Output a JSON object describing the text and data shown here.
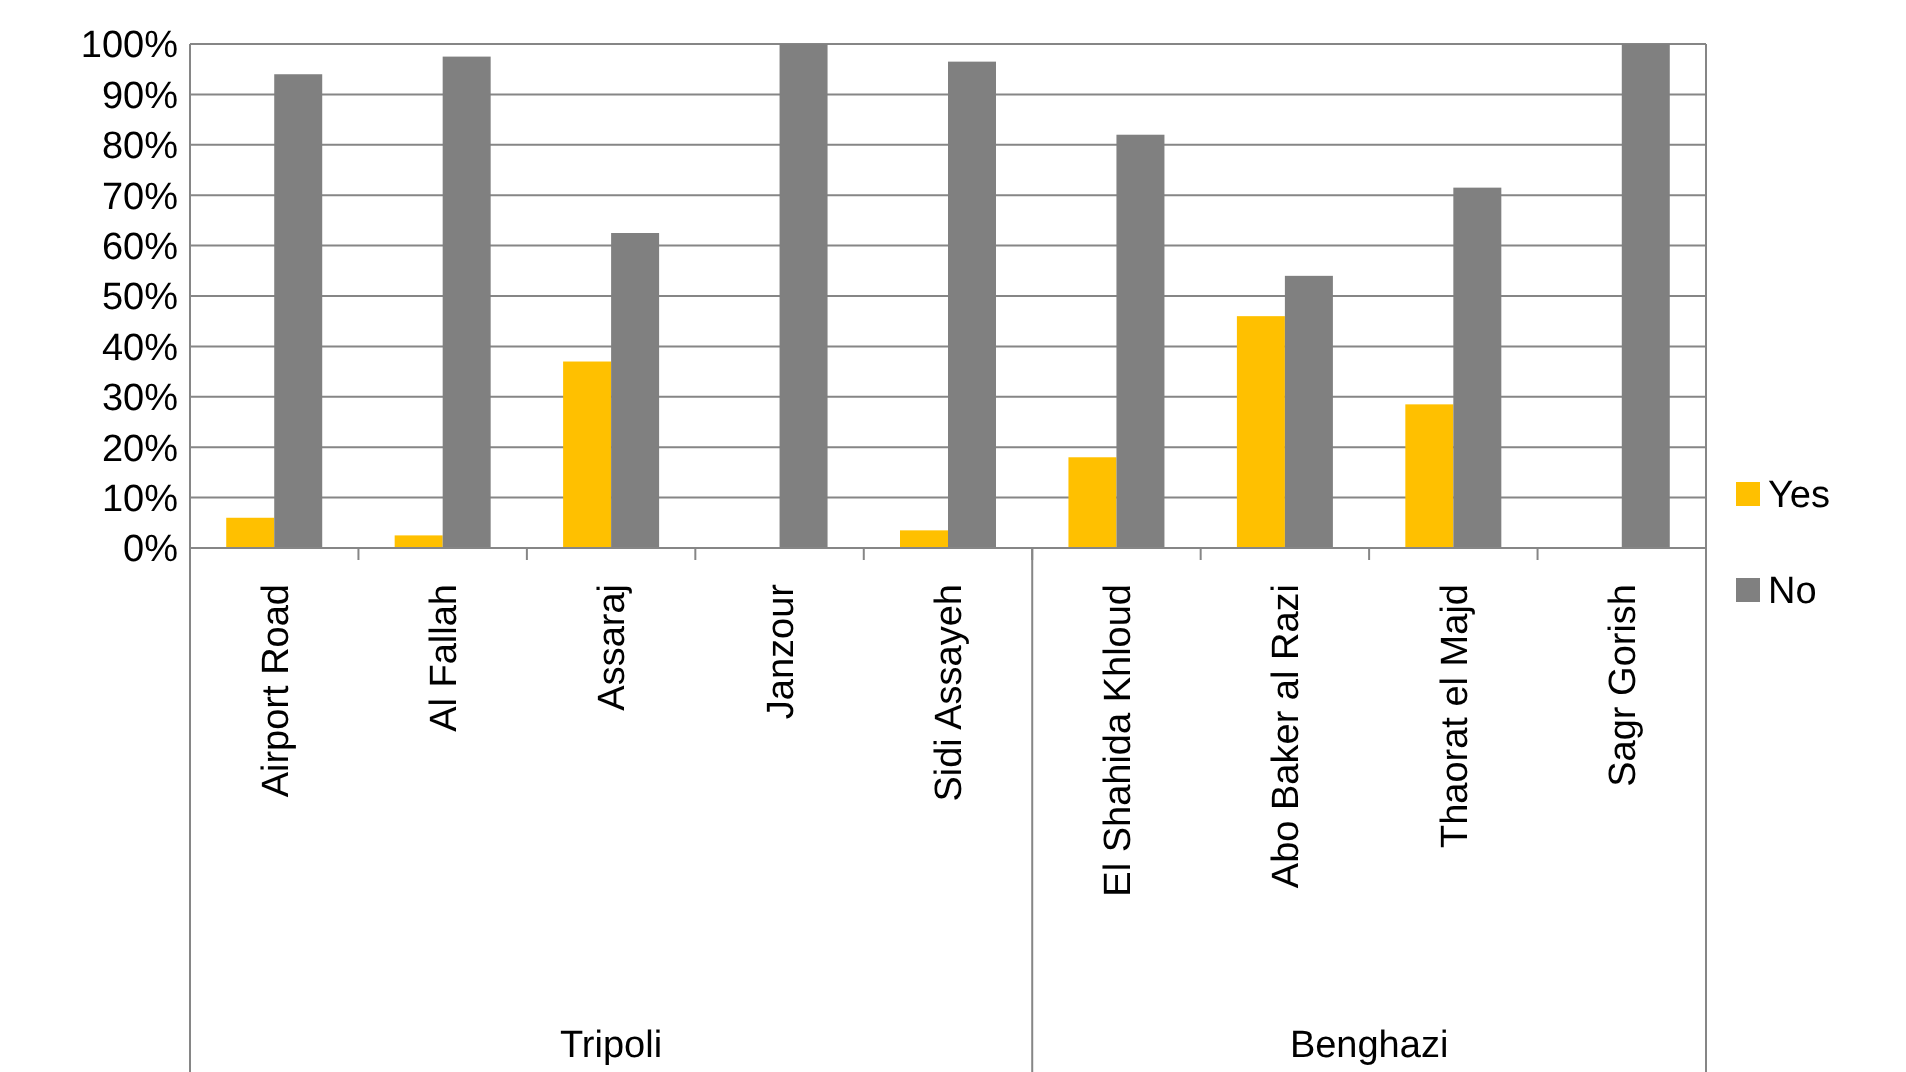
{
  "chart_data": {
    "type": "bar",
    "categories": [
      "Airport Road",
      "Al Fallah",
      "Assaraj",
      "Janzour",
      "Sidi Assayeh",
      "El Shahida Khloud",
      "Abo Baker al Razi",
      "Thaorat el Majd",
      "Sagr Gorish"
    ],
    "series": [
      {
        "name": "Yes",
        "color": "#ffc000",
        "values": [
          6,
          2.5,
          37,
          0,
          3.5,
          18,
          46,
          28.5,
          0
        ]
      },
      {
        "name": "No",
        "color": "#808080",
        "values": [
          94,
          97.5,
          62.5,
          100,
          96.5,
          82,
          54,
          71.5,
          100
        ]
      }
    ],
    "ylim": [
      0,
      100
    ],
    "yticks": [
      {
        "value": 0,
        "label": "0%"
      },
      {
        "value": 10,
        "label": "10%"
      },
      {
        "value": 20,
        "label": "20%"
      },
      {
        "value": 30,
        "label": "30%"
      },
      {
        "value": 40,
        "label": "40%"
      },
      {
        "value": 50,
        "label": "50%"
      },
      {
        "value": 60,
        "label": "60%"
      },
      {
        "value": 70,
        "label": "70%"
      },
      {
        "value": 80,
        "label": "80%"
      },
      {
        "value": 90,
        "label": "90%"
      },
      {
        "value": 100,
        "label": "100%"
      }
    ],
    "grid": "y",
    "legend": "right",
    "annotations": [
      "Tripoli",
      "Benghazi"
    ]
  }
}
